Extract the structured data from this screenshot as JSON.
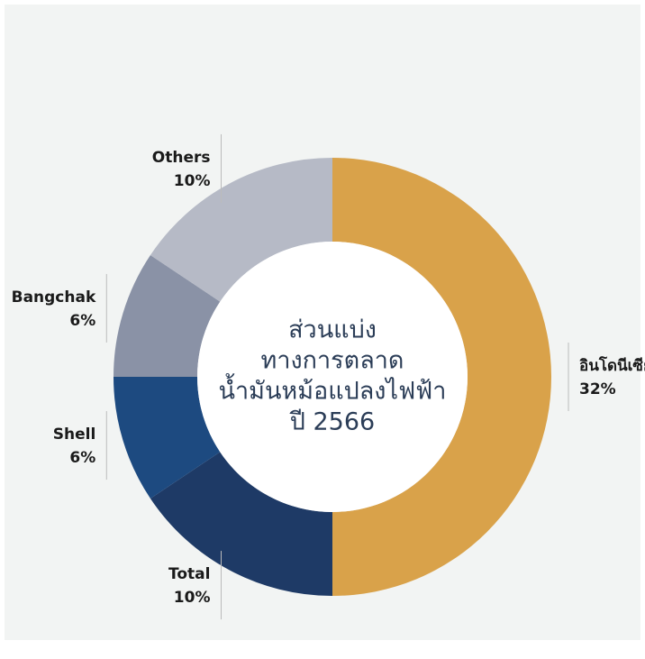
{
  "chart_data": {
    "type": "donut",
    "title": [
      "ส่วนแบ่ง",
      "ทางการตลาด",
      "น้ำมันหม้อแปลงไฟฟ้า",
      "ปี 2566"
    ],
    "categories": [
      "อินโดนีเซีย",
      "Total",
      "Shell",
      "Bangchak",
      "Others"
    ],
    "values": [
      32,
      10,
      6,
      6,
      10
    ],
    "value_labels": [
      "32%",
      "10%",
      "6%",
      "6%",
      "10%"
    ],
    "colors": [
      "#d9a24a",
      "#1e3a66",
      "#1d4a80",
      "#8a92a6",
      "#b6bac6"
    ]
  }
}
